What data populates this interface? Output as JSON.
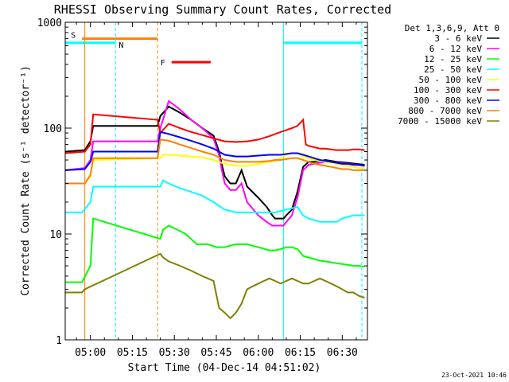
{
  "chart_data": {
    "type": "line",
    "title": "RHESSI Observing Summary Count Rates, Corrected",
    "xlabel": "Start Time (04-Dec-14 04:51:02)",
    "ylabel": "Corrected Count Rate (s⁻¹ detector⁻¹)",
    "y_scale": "log",
    "ylim": [
      1,
      1000
    ],
    "xlim_min": [
      -9,
      99
    ],
    "x_ticks": [
      {
        "m": 0,
        "label": "05:00"
      },
      {
        "m": 15,
        "label": "05:15"
      },
      {
        "m": 30,
        "label": "05:30"
      },
      {
        "m": 45,
        "label": "05:45"
      },
      {
        "m": 60,
        "label": "06:00"
      },
      {
        "m": 75,
        "label": "06:15"
      },
      {
        "m": 90,
        "label": "06:30"
      }
    ],
    "y_ticks": [
      {
        "v": 1,
        "label": "1"
      },
      {
        "v": 10,
        "label": "10"
      },
      {
        "v": 100,
        "label": "100"
      },
      {
        "v": 1000,
        "label": "1000"
      }
    ],
    "legend_title": "Det 1,3,6,9, Att 0",
    "legend_position": "right",
    "series": [
      {
        "name": "3 - 6 keV",
        "color": "#000000",
        "x": [
          -9,
          -2,
          0,
          1,
          24,
          25,
          28,
          32,
          36,
          40,
          44,
          46,
          47,
          48,
          50,
          52,
          54,
          56,
          60,
          63,
          65,
          66,
          67,
          69,
          70,
          72,
          74,
          76,
          78,
          80,
          84,
          88,
          92,
          95,
          98
        ],
        "y": [
          60,
          62,
          75,
          105,
          105,
          130,
          160,
          140,
          120,
          100,
          85,
          60,
          45,
          35,
          30,
          30,
          40,
          28,
          22,
          18,
          15,
          14,
          14,
          14,
          15,
          17,
          25,
          43,
          48,
          48,
          50,
          48,
          47,
          46,
          45
        ]
      },
      {
        "name": "6 - 12 keV",
        "color": "#ff00ff",
        "x": [
          -9,
          -2,
          0,
          1,
          24,
          25,
          28,
          32,
          36,
          40,
          44,
          46,
          47,
          48,
          50,
          52,
          54,
          56,
          60,
          63,
          65,
          66,
          67,
          69,
          70,
          72,
          74,
          76,
          78,
          80,
          84,
          88,
          92,
          95,
          98
        ],
        "y": [
          40,
          42,
          50,
          75,
          75,
          100,
          180,
          150,
          120,
          100,
          80,
          55,
          40,
          30,
          26,
          26,
          30,
          20,
          15,
          13,
          12,
          12,
          12,
          12,
          13,
          15,
          22,
          40,
          45,
          46,
          48,
          47,
          46,
          45,
          44
        ]
      },
      {
        "name": "12 - 25 keV",
        "color": "#00ff00",
        "x": [
          -9,
          -3,
          0,
          1,
          25,
          26,
          28,
          31,
          34,
          38,
          42,
          45,
          48,
          52,
          56,
          60,
          64,
          66,
          68,
          70,
          72,
          74,
          76,
          78,
          80,
          82,
          84,
          86,
          88,
          90,
          92,
          94,
          96,
          98
        ],
        "y": [
          3.5,
          3.5,
          5,
          14,
          9,
          11,
          12,
          11,
          10,
          8,
          8,
          7.5,
          7.5,
          8,
          8,
          7.5,
          7,
          7,
          7.2,
          7.5,
          7.5,
          7.2,
          6.2,
          6,
          5.8,
          5.6,
          5.5,
          5.4,
          5.3,
          5.2,
          5.1,
          5,
          5,
          4.9
        ]
      },
      {
        "name": "25 - 50 keV",
        "color": "#00ffff",
        "x": [
          -9,
          -3,
          0,
          1,
          25,
          26,
          28,
          32,
          36,
          40,
          44,
          48,
          52,
          56,
          60,
          64,
          66,
          68,
          70,
          72,
          74,
          76,
          78,
          80,
          82,
          84,
          86,
          88,
          90,
          92,
          94,
          96,
          98
        ],
        "y": [
          16,
          16,
          20,
          28,
          28,
          32,
          30,
          27,
          25,
          23,
          20,
          17,
          16,
          16,
          16,
          16,
          16,
          16.5,
          17,
          17.5,
          18,
          15,
          14,
          13.5,
          13,
          13,
          13,
          13,
          14,
          14.5,
          15,
          15,
          15
        ]
      },
      {
        "name": "50 - 100 keV",
        "color": "#ffff00",
        "x": [
          -9,
          -2,
          0,
          1,
          25,
          26,
          28,
          32,
          36,
          40,
          44,
          48,
          52,
          56,
          60,
          64,
          66,
          68,
          70,
          72,
          74,
          76,
          78,
          80,
          82,
          84,
          86,
          88,
          90,
          92,
          94,
          96,
          98
        ],
        "y": [
          30,
          30,
          35,
          50,
          52,
          56,
          56,
          55,
          54,
          53,
          50,
          46,
          44,
          44,
          46,
          48,
          49,
          52,
          56,
          58,
          58,
          54,
          52,
          50,
          49,
          48,
          47,
          46,
          45,
          44,
          43,
          42,
          42
        ]
      },
      {
        "name": "100 - 300 keV",
        "color": "#ff0000",
        "x": [
          -9,
          -2,
          0,
          1,
          24,
          25,
          28,
          32,
          36,
          40,
          44,
          48,
          52,
          56,
          60,
          64,
          66,
          68,
          70,
          72,
          74,
          76,
          77,
          78,
          80,
          82,
          84,
          86,
          88,
          90,
          92,
          94,
          96,
          98
        ],
        "y": [
          58,
          60,
          70,
          135,
          120,
          90,
          110,
          100,
          92,
          86,
          80,
          75,
          74,
          75,
          78,
          84,
          88,
          92,
          96,
          100,
          105,
          120,
          70,
          68,
          66,
          64,
          64,
          63,
          62,
          62,
          62,
          63,
          63,
          62
        ]
      },
      {
        "name": "300 - 800 keV",
        "color": "#0000ff",
        "x": [
          -9,
          -2,
          0,
          1,
          24,
          25,
          28,
          32,
          36,
          40,
          44,
          48,
          52,
          56,
          60,
          64,
          66,
          68,
          70,
          72,
          74,
          76,
          78,
          80,
          82,
          84,
          86,
          88,
          90,
          92,
          94,
          96,
          98
        ],
        "y": [
          40,
          41,
          48,
          60,
          60,
          92,
          88,
          82,
          76,
          70,
          64,
          56,
          54,
          54,
          55,
          56,
          56,
          56,
          57,
          58,
          58,
          56,
          54,
          52,
          50,
          49,
          48,
          47,
          46,
          46,
          45,
          45,
          44
        ]
      },
      {
        "name": "800 - 7000 keV",
        "color": "#ff8000",
        "x": [
          -9,
          -2,
          0,
          1,
          24,
          25,
          28,
          32,
          36,
          40,
          44,
          48,
          52,
          56,
          60,
          64,
          66,
          68,
          70,
          72,
          74,
          76,
          78,
          80,
          82,
          84,
          86,
          88,
          90,
          92,
          94,
          96,
          98
        ],
        "y": [
          30,
          30,
          36,
          52,
          52,
          78,
          76,
          70,
          65,
          60,
          56,
          50,
          48,
          48,
          48,
          49,
          50,
          50,
          51,
          52,
          52,
          50,
          48,
          46,
          45,
          44,
          43,
          42,
          41,
          41,
          40,
          40,
          40
        ]
      },
      {
        "name": "7000 - 15000 keV",
        "color": "#808000",
        "x": [
          -9,
          -3,
          -2,
          25,
          26,
          28,
          32,
          36,
          40,
          44,
          46,
          48,
          50,
          52,
          54,
          56,
          58,
          60,
          62,
          64,
          66,
          68,
          70,
          72,
          74,
          76,
          78,
          80,
          82,
          84,
          86,
          88,
          90,
          92,
          94,
          96,
          98
        ],
        "y": [
          2.8,
          2.8,
          3,
          6.5,
          6,
          5.5,
          5,
          4.5,
          4,
          3.6,
          2,
          1.8,
          1.6,
          1.8,
          2.2,
          3,
          3.2,
          3.4,
          3.6,
          3.8,
          3.6,
          3.4,
          3.6,
          3.8,
          3.6,
          3.4,
          3.4,
          3.6,
          3.8,
          3.6,
          3.4,
          3.2,
          3,
          2.8,
          2.8,
          2.6,
          2.5
        ]
      }
    ],
    "bands": [
      {
        "name": "S",
        "color": "#ff8000",
        "y": 700,
        "x": [
          -3,
          24
        ]
      },
      {
        "name": "N",
        "color": "#00ffff",
        "y": 640,
        "x": [
          -9,
          9
        ]
      },
      {
        "name": "F",
        "color": "#ff0000",
        "y": 420,
        "x": [
          29,
          43
        ]
      },
      {
        "name": "",
        "color": "#00ffff",
        "y": 640,
        "x": [
          69,
          97
        ]
      }
    ],
    "event_lines": [
      {
        "x": -2,
        "color": "#ff8000",
        "style": "solid"
      },
      {
        "x": 9,
        "color": "#00ffff",
        "style": "dashed"
      },
      {
        "x": 24,
        "color": "#ff8000",
        "style": "dashed"
      },
      {
        "x": 69,
        "color": "#00ffff",
        "style": "solid"
      },
      {
        "x": 97,
        "color": "#00ffff",
        "style": "dashed"
      }
    ],
    "grid": false,
    "timestamp": "23-Oct-2021 10:46"
  }
}
